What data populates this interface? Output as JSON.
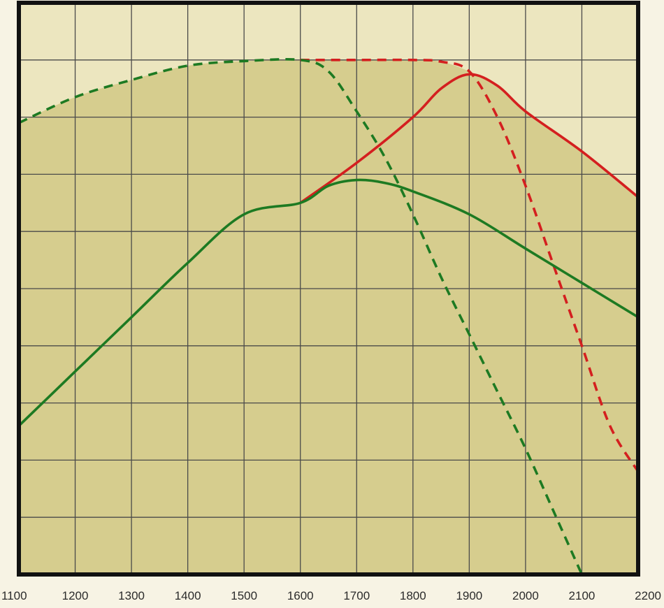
{
  "chart_data": {
    "type": "line",
    "title": "",
    "xlabel": "",
    "ylabel": "",
    "xlim": [
      1100,
      2200
    ],
    "ylim": [
      0,
      10
    ],
    "x_ticks": [
      1100,
      1200,
      1300,
      1400,
      1500,
      1600,
      1700,
      1800,
      1900,
      2000,
      2100,
      2200
    ],
    "x_tick_labels": [
      "1100",
      "1200",
      "1300",
      "1400",
      "1500",
      "1600",
      "1700",
      "1800",
      "1900",
      "2000",
      "2100",
      "2200"
    ],
    "y_tick_labels": [],
    "grid": true,
    "colors": {
      "background": "#f7f3e4",
      "plot_light": "#ece6bf",
      "plot_fill": "#d6cd8e",
      "grid": "#4a4a4a",
      "frame": "#111111",
      "red": "#d41f1f",
      "green": "#1d7a22"
    },
    "series": [
      {
        "color": "#d41f1f",
        "style": "solid",
        "points": [
          [
            1600,
            6.5
          ],
          [
            1700,
            7.2
          ],
          [
            1800,
            8.0
          ],
          [
            1850,
            8.5
          ],
          [
            1900,
            8.75
          ],
          [
            1950,
            8.55
          ],
          [
            2000,
            8.1
          ],
          [
            2100,
            7.4
          ],
          [
            2200,
            6.6
          ]
        ]
      },
      {
        "color": "#d41f1f",
        "style": "dashed",
        "points": [
          [
            1600,
            9.0
          ],
          [
            1700,
            9.0
          ],
          [
            1800,
            9.0
          ],
          [
            1850,
            8.97
          ],
          [
            1900,
            8.8
          ],
          [
            1950,
            8.0
          ],
          [
            2000,
            6.8
          ],
          [
            2050,
            5.4
          ],
          [
            2100,
            4.0
          ],
          [
            2150,
            2.6
          ],
          [
            2200,
            1.8
          ]
        ]
      },
      {
        "color": "#1d7a22",
        "style": "solid",
        "points": [
          [
            1100,
            2.6
          ],
          [
            1200,
            3.55
          ],
          [
            1300,
            4.5
          ],
          [
            1400,
            5.45
          ],
          [
            1500,
            6.3
          ],
          [
            1600,
            6.5
          ],
          [
            1650,
            6.8
          ],
          [
            1700,
            6.9
          ],
          [
            1750,
            6.85
          ],
          [
            1800,
            6.7
          ],
          [
            1900,
            6.3
          ],
          [
            2000,
            5.7
          ],
          [
            2100,
            5.1
          ],
          [
            2200,
            4.5
          ]
        ]
      },
      {
        "color": "#1d7a22",
        "style": "dashed",
        "points": [
          [
            1100,
            7.9
          ],
          [
            1200,
            8.35
          ],
          [
            1300,
            8.65
          ],
          [
            1400,
            8.9
          ],
          [
            1500,
            8.98
          ],
          [
            1600,
            9.0
          ],
          [
            1650,
            8.8
          ],
          [
            1700,
            8.1
          ],
          [
            1750,
            7.3
          ],
          [
            1800,
            6.3
          ],
          [
            1850,
            5.2
          ],
          [
            1900,
            4.2
          ],
          [
            1950,
            3.2
          ],
          [
            2000,
            2.2
          ],
          [
            2050,
            1.1
          ],
          [
            2100,
            0.0
          ]
        ]
      }
    ]
  }
}
